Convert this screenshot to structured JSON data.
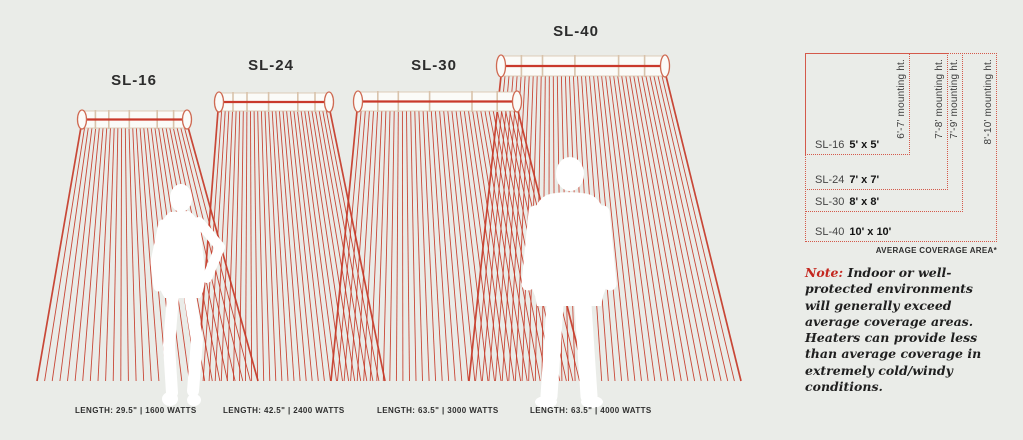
{
  "heaters": [
    {
      "model": "SL-16",
      "spec": "LENGTH: 29.5\" | 1600 WATTS",
      "coverage_model": "SL-16",
      "coverage": "5' x 5'",
      "mounting": "6'-7' mounting ht."
    },
    {
      "model": "SL-24",
      "spec": "LENGTH: 42.5\" | 2400 WATTS",
      "coverage_model": "SL-24",
      "coverage": "7' x 7'",
      "mounting": "7'-8' mounting ht."
    },
    {
      "model": "SL-30",
      "spec": "LENGTH: 63.5\" | 3000 WATTS",
      "coverage_model": "SL-30",
      "coverage": "8' x 8'",
      "mounting": "7'-9' mounting ht."
    },
    {
      "model": "SL-40",
      "spec": "LENGTH: 63.5\" | 4000 WATTS",
      "coverage_model": "SL-40",
      "coverage": "10' x 10'",
      "mounting": "8'-10' mounting ht."
    }
  ],
  "coverage_panel": {
    "footnote": "AVERAGE COVERAGE AREA*"
  },
  "note": {
    "label": "Note:",
    "text": "Indoor or well-protected environments will generally exceed average coverage areas. Heaters can provide less than average coverage in extremely cold/windy conditions."
  },
  "colors": {
    "background": "#eaece8",
    "ray_red": "#c63a28",
    "tube_line_red": "#c9392b",
    "tube_tan": "#d9c3ab",
    "box_border_red": "#d4594a",
    "note_red": "#c4271f",
    "text_dark": "#2e2e2e",
    "silhouette_white": "#ffffff"
  }
}
